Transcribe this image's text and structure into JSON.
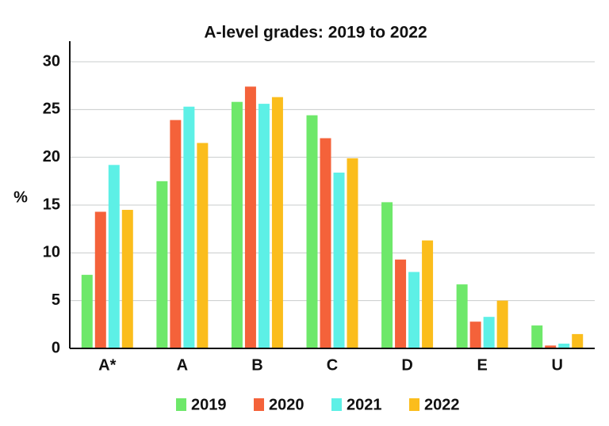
{
  "chart_data": {
    "type": "bar",
    "title": "A-level grades: 2019 to 2022",
    "y_label": "%",
    "categories": [
      "A*",
      "A",
      "B",
      "C",
      "D",
      "E",
      "U"
    ],
    "series": [
      {
        "name": "2019",
        "color": "#6ee86a",
        "values": [
          7.7,
          17.5,
          25.8,
          24.4,
          15.3,
          6.7,
          2.4
        ]
      },
      {
        "name": "2020",
        "color": "#f4623a",
        "values": [
          14.3,
          23.9,
          27.4,
          22.0,
          9.3,
          2.8,
          0.3
        ]
      },
      {
        "name": "2021",
        "color": "#5df0e6",
        "values": [
          19.2,
          25.3,
          25.6,
          18.4,
          8.0,
          3.3,
          0.5
        ]
      },
      {
        "name": "2022",
        "color": "#fbbd1c",
        "values": [
          14.5,
          21.5,
          26.3,
          19.9,
          11.3,
          5.0,
          1.5
        ]
      }
    ],
    "ylim": [
      0,
      30
    ],
    "yticks": [
      0,
      5,
      10,
      15,
      20,
      25,
      30
    ],
    "grid": true
  }
}
